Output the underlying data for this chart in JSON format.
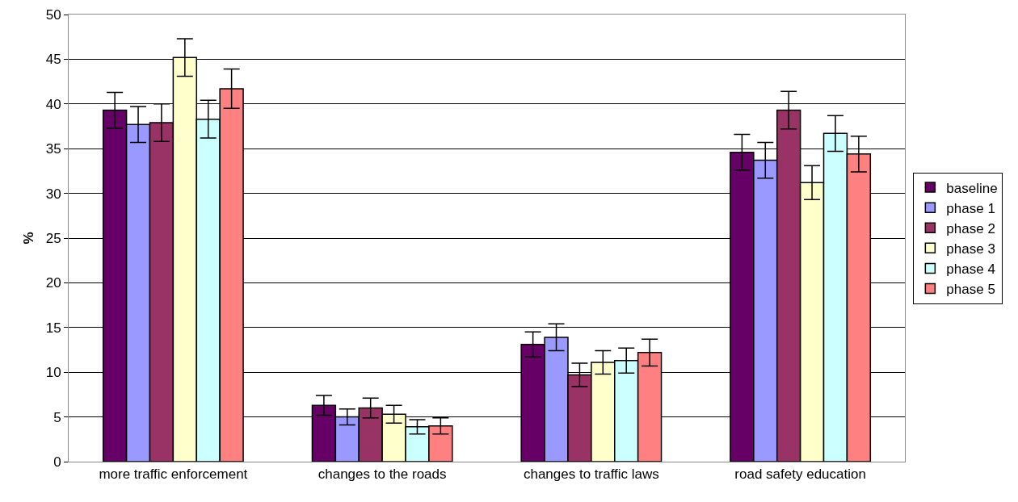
{
  "chart_data": {
    "type": "bar",
    "ylabel": "%",
    "categories": [
      "more traffic enforcement",
      "changes to the roads",
      "changes to traffic laws",
      "road safety education"
    ],
    "series": [
      {
        "name": "baseline",
        "color": "#660066",
        "values": [
          39.3,
          6.3,
          13.1,
          34.6
        ],
        "errors": [
          2.0,
          1.1,
          1.4,
          2.0
        ]
      },
      {
        "name": "phase 1",
        "color": "#9999ff",
        "values": [
          37.7,
          5.0,
          13.9,
          33.7
        ],
        "errors": [
          2.0,
          0.9,
          1.5,
          2.0
        ]
      },
      {
        "name": "phase 2",
        "color": "#993366",
        "values": [
          37.9,
          6.0,
          9.7,
          39.3
        ],
        "errors": [
          2.1,
          1.1,
          1.3,
          2.1
        ]
      },
      {
        "name": "phase 3",
        "color": "#ffffcc",
        "values": [
          45.2,
          5.3,
          11.1,
          31.2
        ],
        "errors": [
          2.1,
          1.0,
          1.3,
          1.9
        ]
      },
      {
        "name": "phase 4",
        "color": "#ccffff",
        "values": [
          38.3,
          3.9,
          11.3,
          36.7
        ],
        "errors": [
          2.1,
          0.8,
          1.4,
          2.0
        ]
      },
      {
        "name": "phase 5",
        "color": "#ff8080",
        "values": [
          41.7,
          4.0,
          12.2,
          34.4
        ],
        "errors": [
          2.2,
          0.9,
          1.5,
          2.0
        ]
      }
    ],
    "ylim": [
      0,
      50
    ],
    "yticks": [
      0,
      5,
      10,
      15,
      20,
      25,
      30,
      35,
      40,
      45,
      50
    ],
    "grid": "y",
    "legend": "right"
  }
}
